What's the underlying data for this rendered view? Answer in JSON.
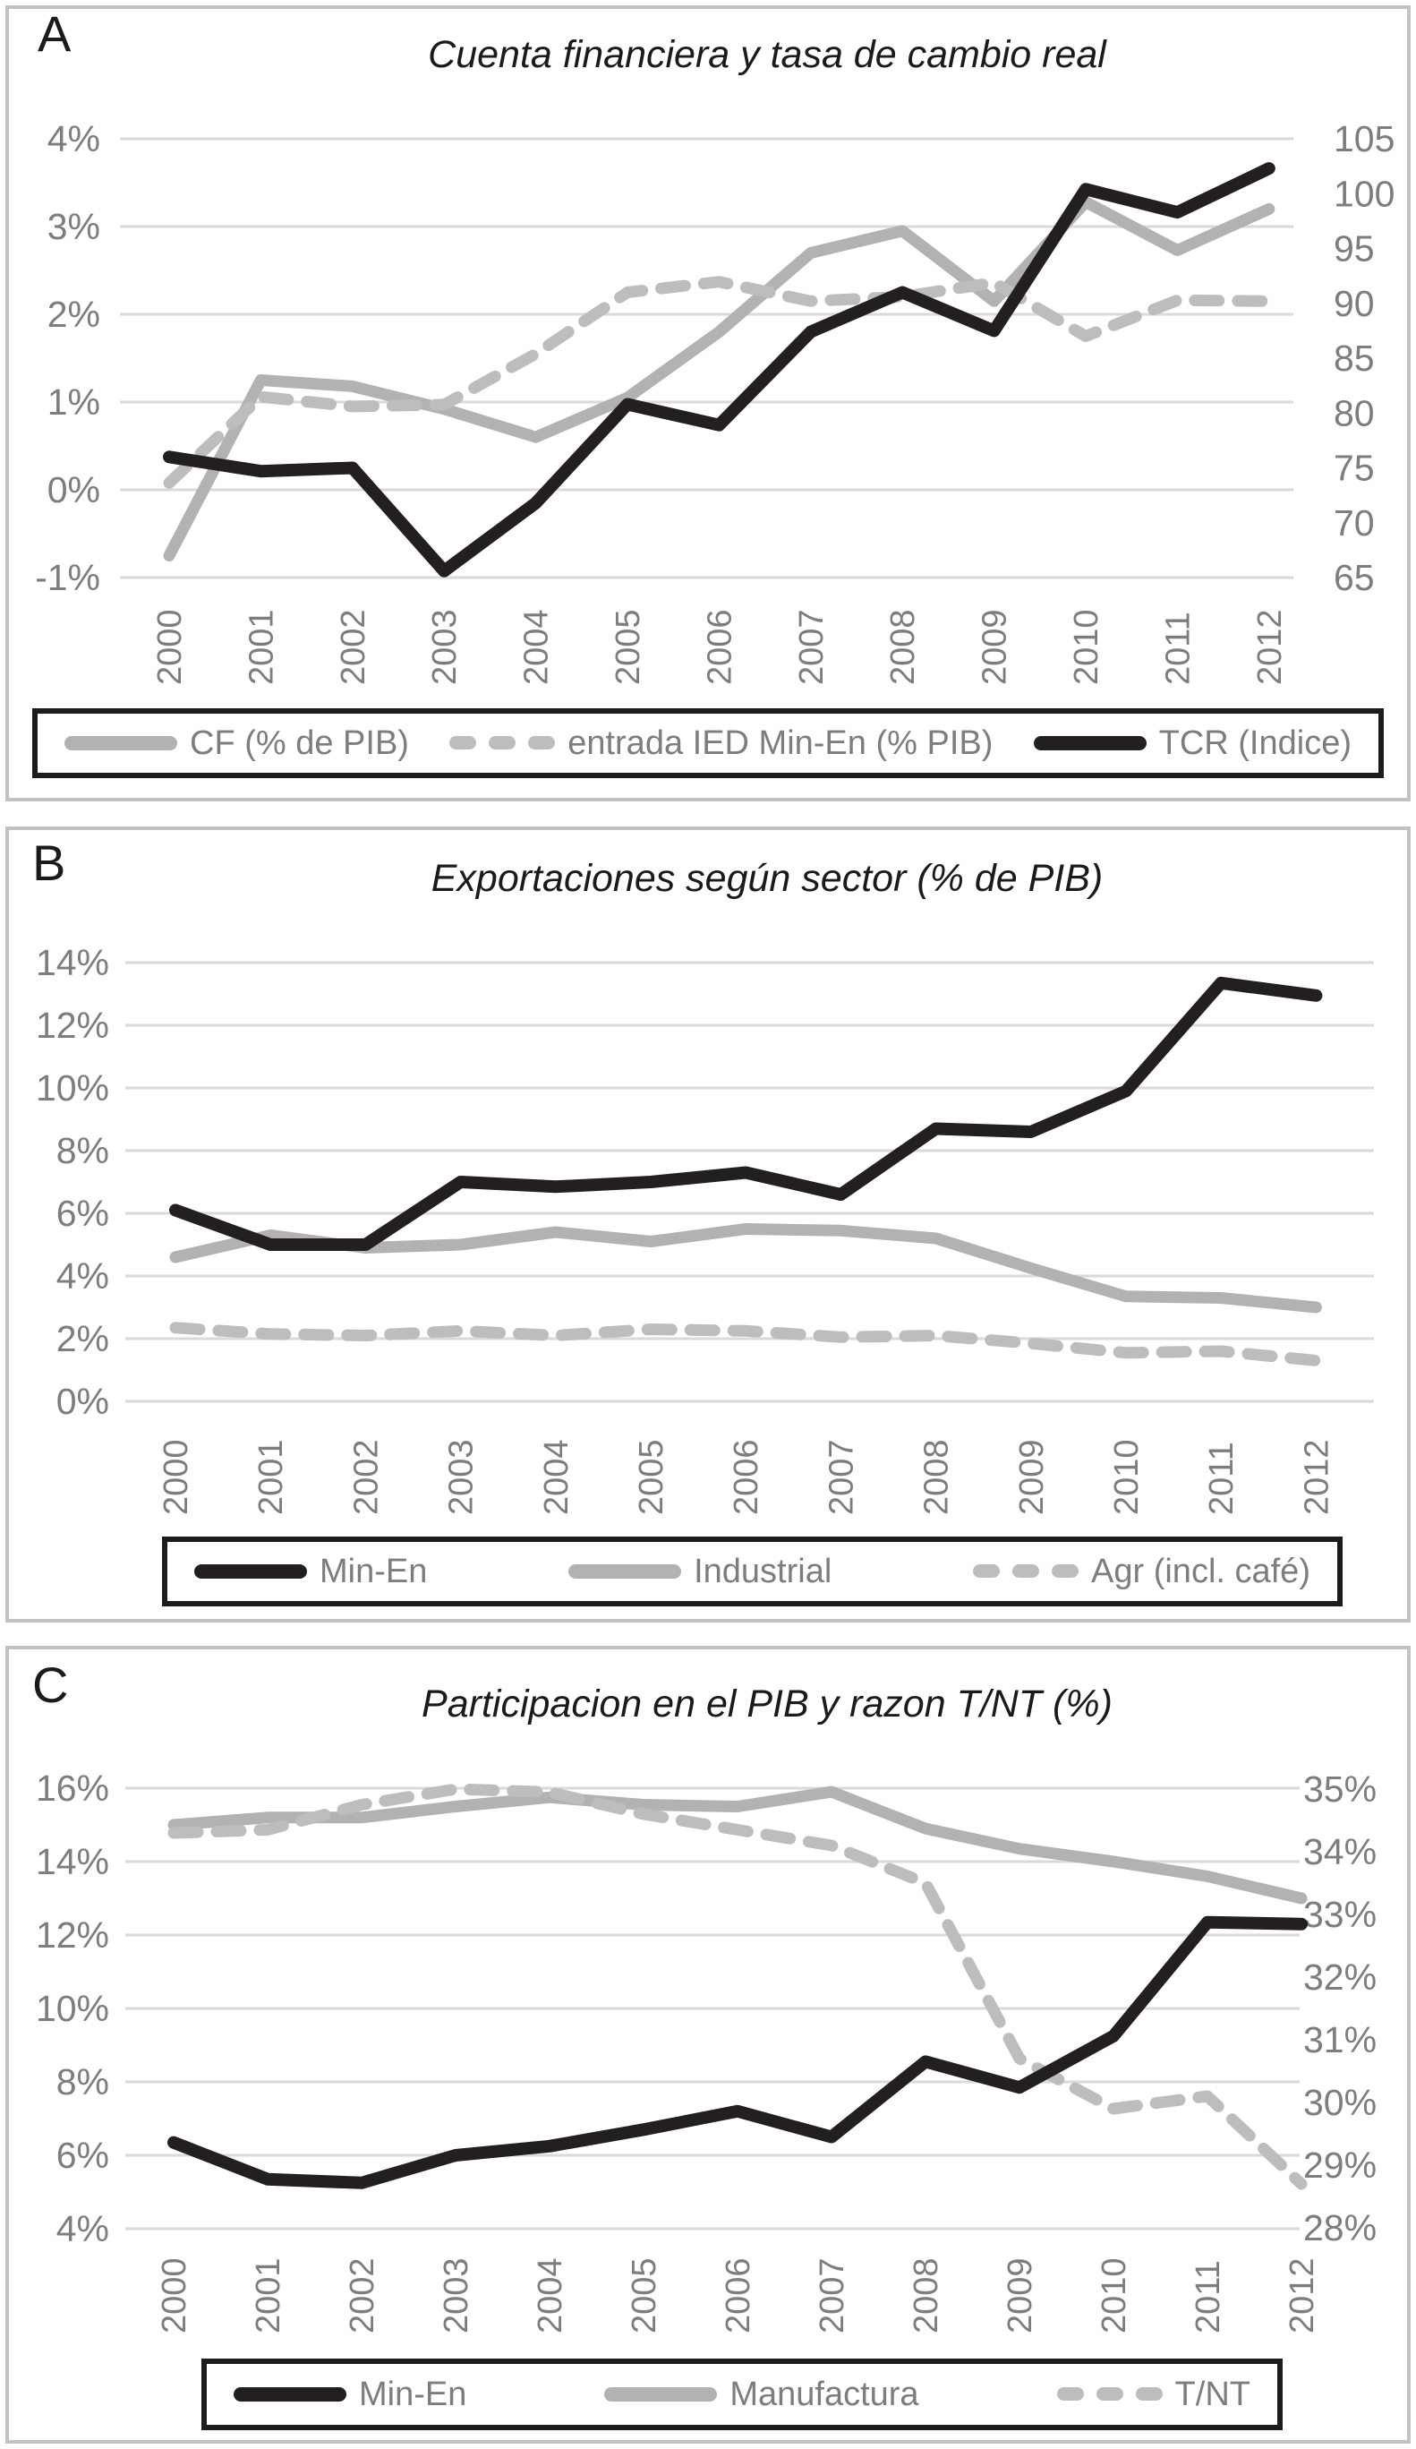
{
  "figure": {
    "description": "Three stacked line-chart panels A, B, C",
    "years_range": "2000-2012"
  },
  "colors": {
    "black_line": "#231f20",
    "gray_line": "#b2b2b2",
    "dash_line": "#bdbdbd",
    "axis_text": "#7d7d7d",
    "gridline": "#dadada",
    "panel_border": "#c2c2c2",
    "legend_border": "#1c1c1c",
    "title_text": "#1a1a1a"
  },
  "chart_data": [
    {
      "type": "line",
      "panel_label": "A",
      "title": "Cuenta financiera  y tasa de cambio real",
      "categories": [
        "2000",
        "2001",
        "2002",
        "2003",
        "2004",
        "2005",
        "2006",
        "2007",
        "2008",
        "2009",
        "2010",
        "2011",
        "2012"
      ],
      "left_axis": {
        "ticks": [
          "4%",
          "3%",
          "2%",
          "1%",
          "0%",
          "-1%"
        ],
        "range": [
          -1,
          4
        ]
      },
      "right_axis": {
        "ticks": [
          "105",
          "100",
          "95",
          "90",
          "85",
          "80",
          "75",
          "70",
          "65"
        ],
        "range": [
          65,
          105
        ]
      },
      "grid": "horizontal",
      "legend_position": "bottom",
      "series": [
        {
          "name": "CF (% de PIB)",
          "style": "gray-solid",
          "axis": "left",
          "values": [
            -0.75,
            1.25,
            1.18,
            0.92,
            0.6,
            1.05,
            1.8,
            2.7,
            2.95,
            2.15,
            3.28,
            2.73,
            3.2
          ]
        },
        {
          "name": "entrada IED Min-En (% PIB)",
          "style": "gray-dashed",
          "axis": "left",
          "values": [
            0.08,
            1.06,
            0.95,
            0.97,
            1.55,
            2.25,
            2.37,
            2.15,
            2.2,
            2.36,
            1.75,
            2.16,
            2.15
          ]
        },
        {
          "name": "TCR (Indice)",
          "style": "black-solid",
          "axis": "right",
          "values": [
            76,
            74.7,
            75,
            65.6,
            71.8,
            80.8,
            78.9,
            87.4,
            91,
            87.5,
            100.4,
            98.3,
            102.3
          ]
        }
      ]
    },
    {
      "type": "line",
      "panel_label": "B",
      "title": "Exportaciones según sector (% de PIB)",
      "categories": [
        "2000",
        "2001",
        "2002",
        "2003",
        "2004",
        "2005",
        "2006",
        "2007",
        "2008",
        "2009",
        "2010",
        "2011",
        "2012"
      ],
      "left_axis": {
        "ticks": [
          "14%",
          "12%",
          "10%",
          "8%",
          "6%",
          "4%",
          "2%",
          "0%"
        ],
        "range": [
          0,
          14
        ]
      },
      "right_axis": null,
      "grid": "horizontal",
      "legend_position": "bottom",
      "series": [
        {
          "name": "Min-En",
          "style": "black-solid",
          "axis": "left",
          "values": [
            6.1,
            5.0,
            5.0,
            7.0,
            6.85,
            7.0,
            7.3,
            6.6,
            8.7,
            8.6,
            9.9,
            13.35,
            12.95
          ]
        },
        {
          "name": "Industrial",
          "style": "gray-solid",
          "axis": "left",
          "values": [
            4.6,
            5.3,
            4.9,
            5.0,
            5.4,
            5.1,
            5.5,
            5.45,
            5.2,
            4.25,
            3.35,
            3.3,
            3.0
          ]
        },
        {
          "name": "Agr (incl. café)",
          "style": "gray-dashed",
          "axis": "left",
          "values": [
            2.35,
            2.15,
            2.1,
            2.25,
            2.1,
            2.3,
            2.25,
            2.05,
            2.1,
            1.85,
            1.55,
            1.6,
            1.3
          ]
        }
      ]
    },
    {
      "type": "line",
      "panel_label": "C",
      "title": "Participacion en el PIB y razon T/NT  (%)",
      "categories": [
        "2000",
        "2001",
        "2002",
        "2003",
        "2004",
        "2005",
        "2006",
        "2007",
        "2008",
        "2009",
        "2010",
        "2011",
        "2012"
      ],
      "left_axis": {
        "ticks": [
          "16%",
          "14%",
          "12%",
          "10%",
          "8%",
          "6%",
          "4%"
        ],
        "range": [
          4,
          16
        ]
      },
      "right_axis": {
        "ticks": [
          "35%",
          "34%",
          "33%",
          "32%",
          "31%",
          "30%",
          "29%",
          "28%"
        ],
        "range": [
          28,
          35
        ]
      },
      "grid": "horizontal",
      "legend_position": "bottom",
      "series": [
        {
          "name": "Min-En",
          "style": "black-solid",
          "axis": "left",
          "values": [
            6.35,
            5.35,
            5.25,
            6.0,
            6.25,
            6.7,
            7.2,
            6.5,
            8.55,
            7.85,
            9.25,
            12.35,
            12.3
          ]
        },
        {
          "name": "Manufactura",
          "style": "gray-solid",
          "axis": "left",
          "values": [
            15.0,
            15.2,
            15.2,
            15.5,
            15.75,
            15.55,
            15.5,
            15.9,
            14.9,
            14.35,
            14.0,
            13.6,
            13.0
          ]
        },
        {
          "name": "T/NT",
          "style": "gray-dashed",
          "axis": "right",
          "values": [
            34.3,
            34.35,
            34.75,
            35.0,
            34.95,
            34.6,
            34.35,
            34.1,
            33.5,
            30.7,
            29.9,
            30.1,
            28.7
          ]
        }
      ]
    }
  ]
}
